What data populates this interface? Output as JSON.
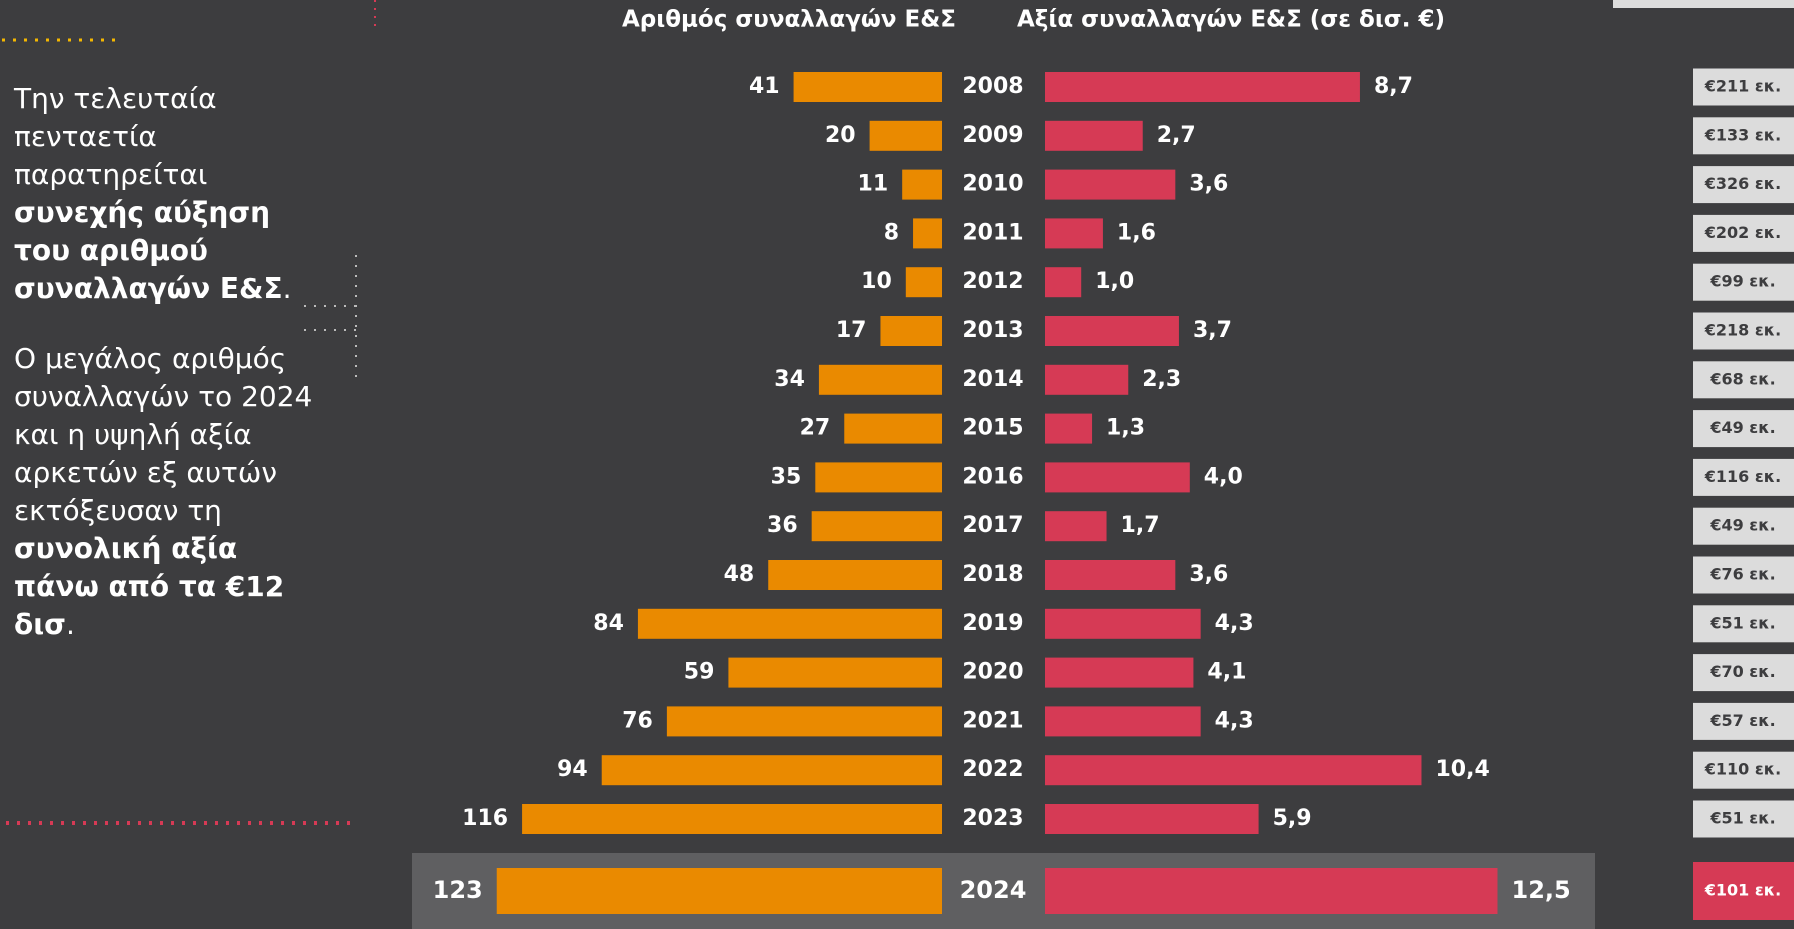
{
  "paragraphs": [
    [
      {
        "text": "Την τελευταία πενταετία παρατηρείται ",
        "bold": false
      },
      {
        "text": "συνεχής αύξηση του αριθμού συναλλαγών Ε&Σ",
        "bold": true
      },
      {
        "text": ".",
        "bold": false
      }
    ],
    [
      {
        "text": "Ο μεγάλος αριθμός συναλλαγών το 2024 και η υψηλή αξία αρκετών εξ αυτών εκτόξευσαν τη ",
        "bold": false
      },
      {
        "text": "συνολική αξία πάνω από τα €12 δισ",
        "bold": true
      },
      {
        "text": ".",
        "bold": false
      }
    ]
  ],
  "chart_data": {
    "type": "butterfly-bar",
    "categories": [
      "2008",
      "2009",
      "2010",
      "2011",
      "2012",
      "2013",
      "2014",
      "2015",
      "2016",
      "2017",
      "2018",
      "2019",
      "2020",
      "2021",
      "2022",
      "2023",
      "2024"
    ],
    "series": [
      {
        "name": "Αριθμός συναλλαγών Ε&Σ",
        "color": "#ea8a00",
        "values": [
          41,
          20,
          11,
          8,
          10,
          17,
          34,
          27,
          35,
          36,
          48,
          84,
          59,
          76,
          94,
          116,
          123
        ]
      },
      {
        "name": "Αξία συναλλαγών Ε&Σ (σε δισ. €)",
        "color": "#d63a55",
        "values": [
          8.7,
          2.7,
          3.6,
          1.6,
          1.0,
          3.7,
          2.3,
          1.3,
          4.0,
          1.7,
          3.6,
          4.3,
          4.1,
          4.3,
          10.4,
          5.9,
          12.5
        ],
        "value_labels": [
          "8,7",
          "2,7",
          "3,6",
          "1,6",
          "1,0",
          "3,7",
          "2,3",
          "1,3",
          "4,0",
          "1,7",
          "3,6",
          "4,3",
          "4,1",
          "4,3",
          "10,4",
          "5,9",
          "12,5"
        ]
      }
    ],
    "averages": [
      "€211 εκ.",
      "€133 εκ.",
      "€326 εκ.",
      "€202 εκ.",
      "€99 εκ.",
      "€218 εκ.",
      "€68 εκ.",
      "€49 εκ.",
      "€116 εκ.",
      "€49 εκ.",
      "€76 εκ.",
      "€51 εκ.",
      "€70 εκ.",
      "€57 εκ.",
      "€110 εκ.",
      "€51 εκ.",
      "€101 εκ."
    ]
  }
}
